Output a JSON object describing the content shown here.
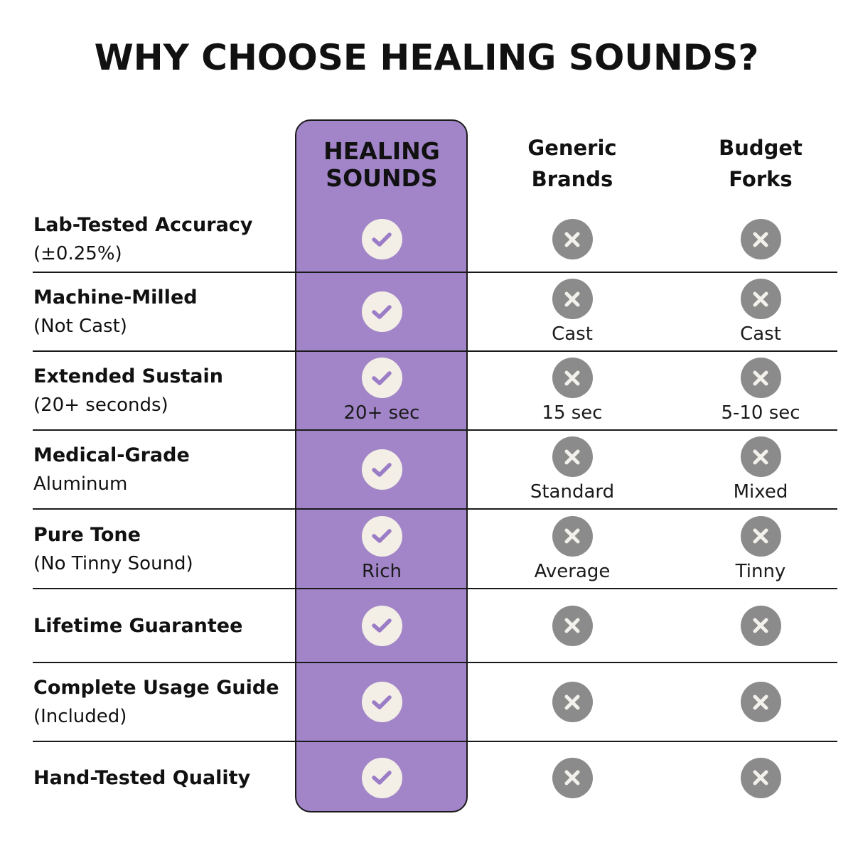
{
  "title": "WHY CHOOSE HEALING SOUNDS?",
  "colors": {
    "accent_purple": "#a285c8",
    "check_bg": "#f3efe6",
    "check_mark": "#9b7cc6",
    "cross_bg": "#8b8b8b"
  },
  "columns": [
    "HEALING SOUNDS",
    "Generic Brands",
    "Budget Forks"
  ],
  "column_lines": [
    [
      "HEALING",
      "SOUNDS"
    ],
    [
      "Generic",
      "Brands"
    ],
    [
      "Budget",
      "Forks"
    ]
  ],
  "rows": [
    {
      "title": "Lab-Tested Accuracy",
      "sub": "(±0.25%)",
      "cells": [
        {
          "icon": "check",
          "label": ""
        },
        {
          "icon": "cross",
          "label": ""
        },
        {
          "icon": "cross",
          "label": ""
        }
      ]
    },
    {
      "title": "Machine-Milled",
      "sub": "(Not Cast)",
      "cells": [
        {
          "icon": "check",
          "label": ""
        },
        {
          "icon": "cross",
          "label": "Cast"
        },
        {
          "icon": "cross",
          "label": "Cast"
        }
      ]
    },
    {
      "title": "Extended Sustain",
      "sub": "(20+ seconds)",
      "cells": [
        {
          "icon": "check",
          "label": "20+ sec"
        },
        {
          "icon": "cross",
          "label": "15 sec"
        },
        {
          "icon": "cross",
          "label": "5-10 sec"
        }
      ]
    },
    {
      "title": "Medical-Grade",
      "sub": "Aluminum",
      "cells": [
        {
          "icon": "check",
          "label": ""
        },
        {
          "icon": "cross",
          "label": "Standard"
        },
        {
          "icon": "cross",
          "label": "Mixed"
        }
      ]
    },
    {
      "title": "Pure Tone",
      "sub": "(No Tinny Sound)",
      "cells": [
        {
          "icon": "check",
          "label": "Rich"
        },
        {
          "icon": "cross",
          "label": "Average"
        },
        {
          "icon": "cross",
          "label": "Tinny"
        }
      ]
    },
    {
      "title": "Lifetime Guarantee",
      "sub": "",
      "cells": [
        {
          "icon": "check",
          "label": ""
        },
        {
          "icon": "cross",
          "label": ""
        },
        {
          "icon": "cross",
          "label": ""
        }
      ]
    },
    {
      "title": "Complete Usage Guide",
      "sub": "(Included)",
      "cells": [
        {
          "icon": "check",
          "label": ""
        },
        {
          "icon": "cross",
          "label": ""
        },
        {
          "icon": "cross",
          "label": ""
        }
      ]
    },
    {
      "title": "Hand-Tested Quality",
      "sub": "",
      "cells": [
        {
          "icon": "check",
          "label": ""
        },
        {
          "icon": "cross",
          "label": ""
        },
        {
          "icon": "cross",
          "label": ""
        }
      ]
    }
  ]
}
